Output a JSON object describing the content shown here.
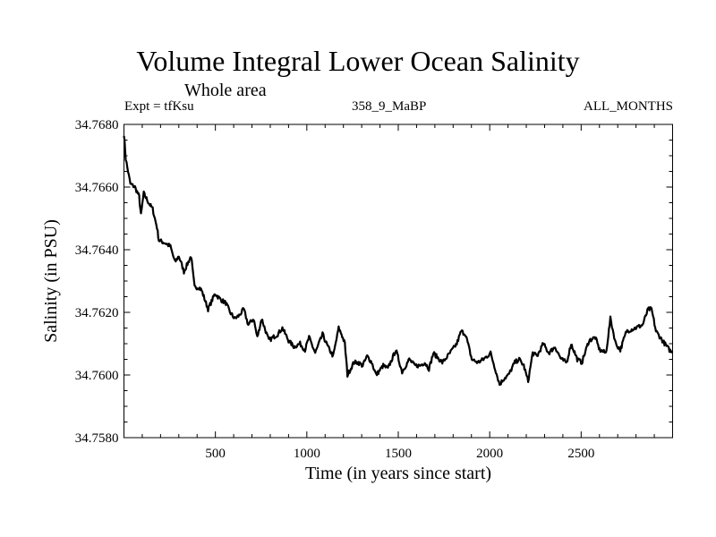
{
  "header": {
    "title": "Volume Integral Lower Ocean Salinity",
    "subtitle": "Whole area",
    "experiment": "Expt = tfKsu",
    "run_id": "358_9_MaBP",
    "period": "ALL_MONTHS"
  },
  "chart_data": {
    "type": "line",
    "title": "Volume Integral Lower Ocean Salinity",
    "subtitle": "Whole area",
    "xlabel": "Time (in years since start)",
    "ylabel": "Salinity (in PSU)",
    "xlim": [
      0,
      3000
    ],
    "ylim": [
      34.758,
      34.768
    ],
    "x_ticks": [
      500,
      1000,
      1500,
      2000,
      2500
    ],
    "x_tick_labels": [
      "500",
      "1000",
      "1500",
      "2000",
      "2500"
    ],
    "x_minor_step": 100,
    "y_ticks": [
      34.758,
      34.76,
      34.762,
      34.764,
      34.766,
      34.768
    ],
    "y_tick_labels": [
      "34.7580",
      "34.7600",
      "34.7620",
      "34.7640",
      "34.7660",
      "34.7680"
    ],
    "y_minor_step": 0.0005,
    "grid": false,
    "legend": "none",
    "line_color": "#000000",
    "series": [
      {
        "name": "Salinity",
        "x": [
          0,
          10,
          35,
          60,
          83,
          93,
          108,
          135,
          157,
          181,
          191,
          230,
          254,
          279,
          300,
          328,
          367,
          386,
          411,
          425,
          460,
          498,
          530,
          557,
          580,
          606,
          630,
          655,
          680,
          709,
          729,
          753,
          775,
          792,
          815,
          841,
          866,
          900,
          930,
          963,
          990,
          1012,
          1046,
          1086,
          1115,
          1144,
          1174,
          1190,
          1208,
          1222,
          1257,
          1281,
          1305,
          1330,
          1355,
          1379,
          1418,
          1443,
          1487,
          1521,
          1560,
          1590,
          1619,
          1645,
          1668,
          1692,
          1741,
          1770,
          1795,
          1820,
          1844,
          1868,
          1902,
          1935,
          1966,
          2005,
          2030,
          2054,
          2080,
          2103,
          2137,
          2161,
          2186,
          2210,
          2235,
          2259,
          2293,
          2323,
          2357,
          2391,
          2421,
          2445,
          2479,
          2504,
          2543,
          2577,
          2601,
          2636,
          2660,
          2689,
          2714,
          2748,
          2797,
          2836,
          2866,
          2885,
          2909,
          2944,
          2983,
          2998
        ],
        "y": [
          34.7677,
          34.7669,
          34.7661,
          34.766,
          34.7657,
          34.7651,
          34.7658,
          34.7655,
          34.7653,
          34.7647,
          34.7643,
          34.7642,
          34.7641,
          34.7636,
          34.7638,
          34.7633,
          34.7638,
          34.7628,
          34.7628,
          34.7627,
          34.7621,
          34.7626,
          34.7624,
          34.7623,
          34.762,
          34.7618,
          34.7619,
          34.7621,
          34.7616,
          34.7618,
          34.7612,
          34.7618,
          34.7614,
          34.7611,
          34.7612,
          34.7613,
          34.7615,
          34.7611,
          34.7609,
          34.761,
          34.7608,
          34.7612,
          34.7607,
          34.7613,
          34.7609,
          34.7606,
          34.7615,
          34.7613,
          34.761,
          34.76,
          34.7604,
          34.7604,
          34.7603,
          34.7606,
          34.7604,
          34.76,
          34.7603,
          34.7602,
          34.7608,
          34.7601,
          34.7605,
          34.7603,
          34.7603,
          34.7604,
          34.7602,
          34.7607,
          34.7604,
          34.7606,
          34.7608,
          34.761,
          34.7614,
          34.7613,
          34.7605,
          34.7604,
          34.7605,
          34.7607,
          34.7602,
          34.7597,
          34.7599,
          34.76,
          34.7604,
          34.7605,
          34.7603,
          34.7598,
          34.7607,
          34.7606,
          34.761,
          34.7607,
          34.7609,
          34.7605,
          34.7604,
          34.761,
          34.7605,
          34.7604,
          34.7611,
          34.7612,
          34.7608,
          34.7607,
          34.7618,
          34.761,
          34.7608,
          34.7614,
          34.7615,
          34.7616,
          34.7621,
          34.7621,
          34.7614,
          34.7611,
          34.7608,
          34.7607
        ]
      }
    ]
  }
}
